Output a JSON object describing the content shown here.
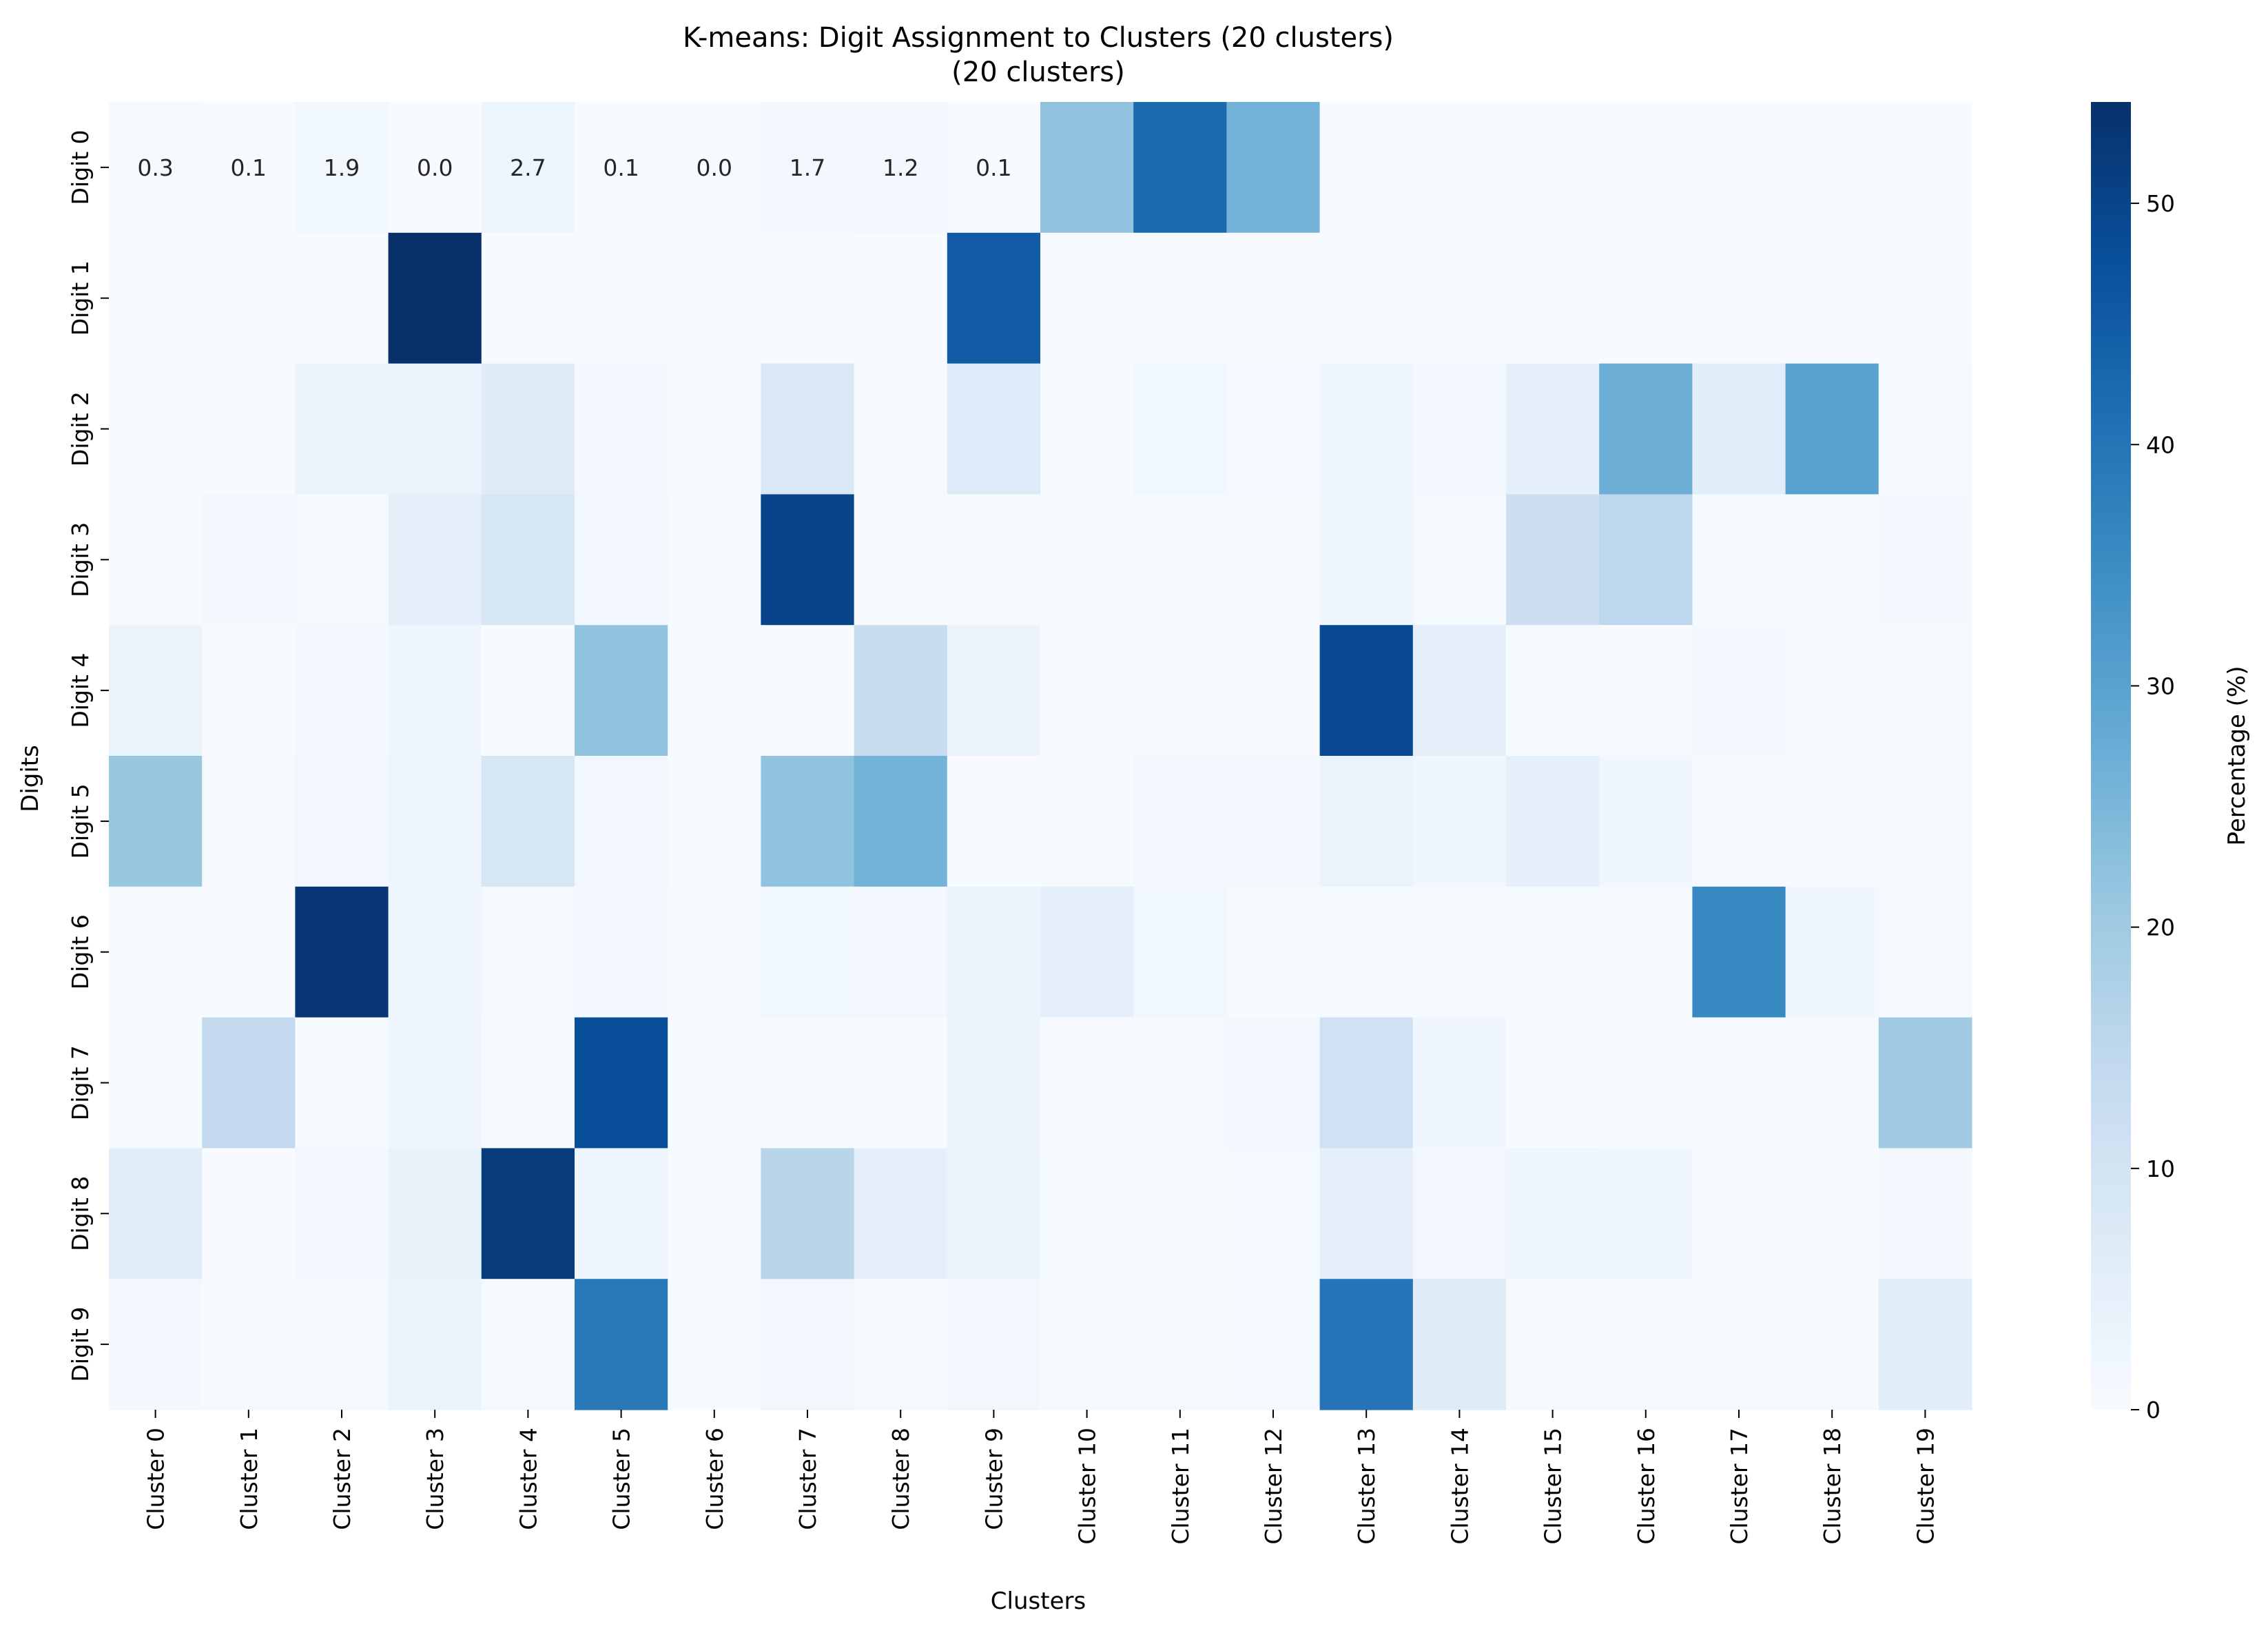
{
  "chart_data": {
    "type": "heatmap",
    "title": "K-means: Digit Assignment to Clusters (20 clusters)",
    "subtitle": "(20 clusters)",
    "xlabel": "Clusters",
    "ylabel": "Digits",
    "x_categories": [
      "Cluster 0",
      "Cluster 1",
      "Cluster 2",
      "Cluster 3",
      "Cluster 4",
      "Cluster 5",
      "Cluster 6",
      "Cluster 7",
      "Cluster 8",
      "Cluster 9",
      "Cluster 10",
      "Cluster 11",
      "Cluster 12",
      "Cluster 13",
      "Cluster 14",
      "Cluster 15",
      "Cluster 16",
      "Cluster 17",
      "Cluster 18",
      "Cluster 19"
    ],
    "y_categories": [
      "Digit 0",
      "Digit 1",
      "Digit 2",
      "Digit 3",
      "Digit 4",
      "Digit 5",
      "Digit 6",
      "Digit 7",
      "Digit 8",
      "Digit 9"
    ],
    "values": [
      [
        0.3,
        0.1,
        1.9,
        0.0,
        2.7,
        0.1,
        0.0,
        1.7,
        1.2,
        0.1,
        22,
        42,
        26,
        0,
        0,
        0,
        0,
        0,
        0,
        0
      ],
      [
        0.1,
        0,
        0,
        54,
        0,
        0.2,
        0,
        0.3,
        0.1,
        45,
        0,
        0,
        0,
        0,
        0,
        0,
        0,
        0,
        0,
        0
      ],
      [
        0.3,
        0.2,
        3.5,
        3.5,
        6.5,
        1.2,
        0,
        8,
        0.5,
        7,
        0.5,
        1.8,
        1,
        2.5,
        1.2,
        4.5,
        27,
        6,
        30,
        0.5
      ],
      [
        0.5,
        1.2,
        0.8,
        5,
        9,
        1.5,
        0,
        50,
        0.3,
        0.5,
        0.5,
        0.5,
        0.8,
        2,
        0.5,
        12,
        15,
        0.5,
        0.5,
        1.2
      ],
      [
        3,
        0.3,
        1.2,
        2.5,
        0.1,
        22,
        0,
        0.2,
        13,
        3,
        0,
        0.3,
        0.3,
        49,
        5,
        0.5,
        0.1,
        1.2,
        0.5,
        0.5
      ],
      [
        21,
        0.3,
        1.5,
        2.5,
        9,
        1.5,
        0,
        22,
        26,
        0.3,
        0.5,
        1.5,
        1.2,
        3.5,
        2,
        4.5,
        2,
        0.3,
        0.3,
        0.5
      ],
      [
        0.5,
        0.3,
        53,
        2.5,
        0.8,
        1.2,
        0,
        1.8,
        1.5,
        3,
        5,
        1.8,
        0.5,
        0.5,
        0.5,
        0.5,
        0.5,
        36,
        2,
        0.5
      ],
      [
        0.5,
        14,
        0.5,
        2.5,
        0.5,
        48,
        0,
        0.3,
        0.3,
        3.5,
        0.3,
        0.8,
        1.2,
        11,
        2,
        0.5,
        0.5,
        0.3,
        0.3,
        20
      ],
      [
        6,
        0.1,
        1.2,
        4,
        52,
        2.5,
        0,
        16,
        5,
        3.5,
        0.5,
        0.8,
        1,
        5,
        1.5,
        2.5,
        2,
        0.3,
        0.3,
        1.2
      ],
      [
        1.2,
        0.5,
        0.5,
        3.5,
        0.8,
        39,
        0,
        1.5,
        0.5,
        1.5,
        0.5,
        0.8,
        1,
        40,
        6.5,
        0.5,
        0.5,
        0.5,
        0.5,
        6
      ]
    ],
    "annotated_row": 0,
    "annotations": [
      "0.3",
      "0.1",
      "1.9",
      "0.0",
      "2.7",
      "0.1",
      "0.0",
      "1.7",
      "1.2",
      "0.1"
    ],
    "colorbar": {
      "label": "Percentage (%)",
      "range": [
        0,
        54.2
      ],
      "ticks": [
        0,
        10,
        20,
        30,
        40,
        50
      ],
      "colormap": "Blues"
    }
  }
}
